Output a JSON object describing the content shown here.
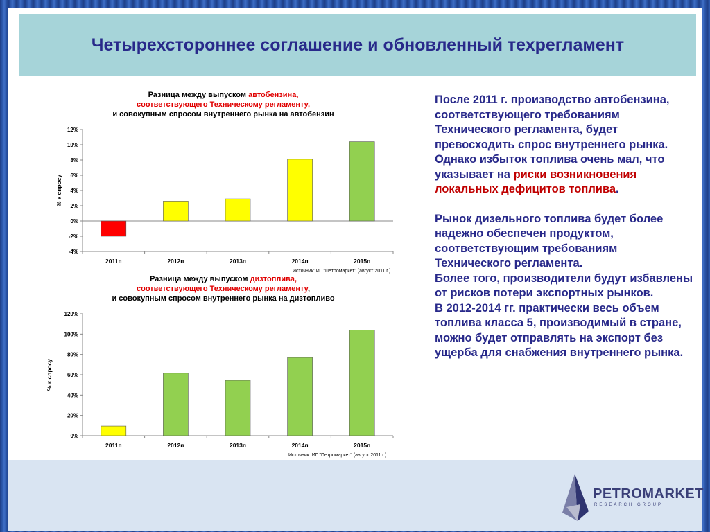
{
  "title": "Четырехстороннее соглашение и обновленный техрегламент",
  "chart_data": [
    {
      "type": "bar",
      "title_lines": [
        [
          "Разница между выпуском ",
          "автобензина,"
        ],
        [
          "соответствующего Техническому регламенту,",
          ""
        ],
        [
          "и  совокупным спросом внутреннего рынка на автобензин",
          ""
        ]
      ],
      "ylabel": "% к спросу",
      "categories": [
        "2011п",
        "2012п",
        "2013п",
        "2014п",
        "2015п"
      ],
      "values": [
        -2.0,
        2.6,
        2.9,
        8.1,
        10.4
      ],
      "colors": [
        "#ff0000",
        "#ffff00",
        "#ffff00",
        "#ffff00",
        "#92d050"
      ],
      "ylim": [
        -4,
        12
      ],
      "yticks": [
        12,
        10,
        8,
        6,
        4,
        2,
        0,
        -2,
        -4
      ],
      "ytick_labels": [
        "12%",
        "10%",
        "8%",
        "6%",
        "4%",
        "2%",
        "0%",
        "-2%",
        "-4%"
      ],
      "source": "Источник:  ИГ \"Петромаркет\" (август 2011 г.)",
      "grid": false,
      "legend": "none"
    },
    {
      "type": "bar",
      "title_lines": [
        [
          "Разница между выпуском ",
          "дизтоплива,"
        ],
        [
          "соответствующего Техническому регламенту",
          ","
        ],
        [
          "и  совокупным спросом внутреннего рынка на дизтопливо",
          ""
        ]
      ],
      "ylabel": "% к спросу",
      "categories": [
        "2011п",
        "2012п",
        "2013п",
        "2014п",
        "2015п"
      ],
      "values": [
        9.5,
        61.5,
        54.5,
        77,
        104
      ],
      "colors": [
        "#ffff00",
        "#92d050",
        "#92d050",
        "#92d050",
        "#92d050"
      ],
      "ylim": [
        0,
        120
      ],
      "yticks": [
        120,
        100,
        80,
        60,
        40,
        20,
        0
      ],
      "ytick_labels": [
        "120%",
        "100%",
        "80%",
        "60%",
        "40%",
        "20%",
        "0%"
      ],
      "source": "Источник:  ИГ \"Петромаркет\" (август 2011 г.)",
      "grid": false,
      "legend": "none"
    }
  ],
  "text": {
    "p1_before": "После 2011 г. производство автобензина, соответствующего требованиям Технического регламента, будет превосходить спрос внутреннего рынка. Однако избыток топлива очень мал, что указывает на ",
    "p1_risk": "риски возникновения локальных дефицитов топлива",
    "p1_after": ".",
    "p2": "Рынок дизельного топлива будет более надежно обеспечен продуктом, соответствующим требованиям Технического регламента.",
    "p3": "Более того, производители будут избавлены от рисков потери экспортных рынков.",
    "p4": "В 2012-2014 гг. практически весь объем топлива класса 5, производимый в стране, можно будет отправлять на экспорт без ущерба для снабжения внутреннего рынка."
  },
  "logo": {
    "name": "PETROMARKET",
    "tagline": "RESEARCH GROUP"
  },
  "colors": {
    "title_text": "#28298a",
    "title_bar": "#a6d4d9",
    "risk_text": "#c00000",
    "bar_red": "#ff0000",
    "bar_yellow": "#ffff00",
    "bar_green": "#92d050"
  }
}
